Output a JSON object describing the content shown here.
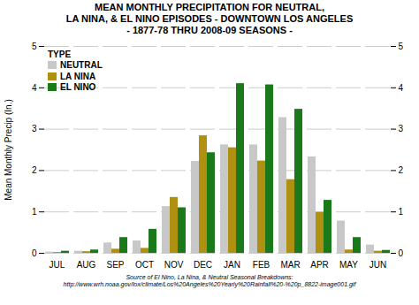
{
  "chart_data": {
    "type": "bar",
    "title": "MEAN MONTHLY PRECIPITATION FOR NEUTRAL,\nLA NINA, & EL NINO EPISODES - DOWNTOWN LOS ANGELES\n- 1877-78 THRU 2008-09 SEASONS -",
    "source": "Source of El Nino, La Nina, & Neutral Seasonal Breakdowns:\nhttp://www.wrh.noaa.gov/lox/climate/Los%20Angeles%20Yearly%20Rainfall%20-%20p_8822-image001.gif",
    "categories": [
      "JUL",
      "AUG",
      "SEP",
      "OCT",
      "NOV",
      "DEC",
      "JAN",
      "FEB",
      "MAR",
      "APR",
      "MAY",
      "JUN"
    ],
    "series": [
      {
        "name": "NEUTRAL",
        "color": "#c8c8c8",
        "values": [
          0.03,
          0.05,
          0.25,
          0.3,
          1.13,
          2.22,
          2.62,
          2.62,
          3.28,
          2.33,
          0.78,
          0.2
        ]
      },
      {
        "name": "LA NINA",
        "color": "#b09010",
        "values": [
          0.02,
          0.04,
          0.1,
          0.12,
          1.35,
          2.84,
          2.55,
          2.23,
          1.78,
          0.99,
          0.08,
          0.05
        ]
      },
      {
        "name": "EL NINO",
        "color": "#1a7a1a",
        "values": [
          0.05,
          0.08,
          0.38,
          0.58,
          1.1,
          2.43,
          4.1,
          4.07,
          3.48,
          1.28,
          0.38,
          0.07
        ]
      }
    ],
    "ylabel": "Mean Monthly Precip (In.)",
    "ylim": [
      0,
      5
    ],
    "yticks": [
      0,
      1,
      2,
      3,
      4,
      5
    ],
    "y2lim": [
      0,
      5
    ],
    "y2ticks": [
      0,
      1,
      2,
      3,
      4,
      5
    ],
    "grid": true,
    "legend": "upper left",
    "legend_title": "TYPE"
  }
}
